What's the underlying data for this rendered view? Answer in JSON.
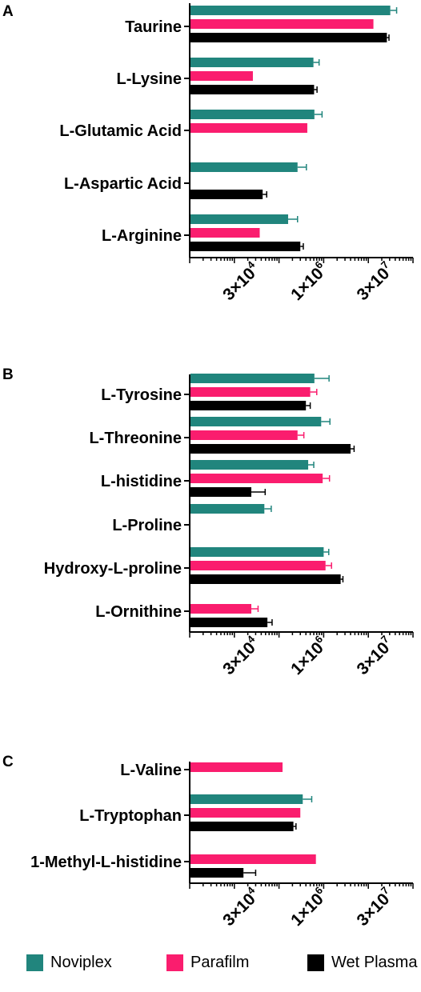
{
  "colors": {
    "Noviplex": "#21857d",
    "Parafilm": "#fa1d6e",
    "Wet Plasma": "#000000"
  },
  "legend": [
    "Noviplex",
    "Parafilm",
    "Wet Plasma"
  ],
  "chart_data": [
    {
      "panel": "A",
      "type": "bar",
      "orientation": "horizontal",
      "xscale": "log",
      "xlim": [
        1000,
        100000000
      ],
      "xticks": [
        "3×10^4",
        "1×10^6",
        "3×10^7"
      ],
      "categories": [
        "Taurine",
        "L-Lysine",
        "L-Glutamic Acid",
        "L-Aspartic Acid",
        "L-Arginine"
      ],
      "series": [
        {
          "name": "Noviplex",
          "values": [
            31000000,
            590000,
            620000,
            260000,
            160000
          ],
          "errors": [
            12000000,
            200000,
            300000,
            150000,
            100000
          ]
        },
        {
          "name": "Parafilm",
          "values": [
            13000000,
            26000,
            430000,
            null,
            37000
          ],
          "errors": [
            null,
            null,
            null,
            null,
            null
          ]
        },
        {
          "name": "Wet Plasma",
          "values": [
            26000000,
            610000,
            null,
            43000,
            300000
          ],
          "errors": [
            3000000,
            100000,
            null,
            10000,
            50000
          ]
        }
      ]
    },
    {
      "panel": "B",
      "type": "bar",
      "orientation": "horizontal",
      "xscale": "log",
      "xlim": [
        1000,
        100000000
      ],
      "xticks": [
        "3×10^4",
        "1×10^6",
        "3×10^7"
      ],
      "categories": [
        "L-Tyrosine",
        "L-Threonine",
        "L-histidine",
        "L-Proline",
        "Hydroxy-L-proline",
        "L-Ornithine"
      ],
      "series": [
        {
          "name": "Noviplex",
          "values": [
            620000,
            880000,
            450000,
            47000,
            1000000,
            null
          ],
          "errors": [
            700000,
            500000,
            150000,
            20000,
            300000,
            null
          ]
        },
        {
          "name": "Parafilm",
          "values": [
            500000,
            260000,
            950000,
            null,
            1100000,
            24000
          ],
          "errors": [
            200000,
            100000,
            400000,
            null,
            400000,
            10000
          ]
        },
        {
          "name": "Wet Plasma",
          "values": [
            400000,
            4000000,
            24000,
            null,
            2400000,
            55000
          ],
          "errors": [
            100000,
            800000,
            25000,
            null,
            300000,
            15000
          ]
        }
      ]
    },
    {
      "panel": "C",
      "type": "bar",
      "orientation": "horizontal",
      "xscale": "log",
      "xlim": [
        1000,
        100000000
      ],
      "xticks": [
        "3×10^4",
        "1×10^6",
        "3×10^7"
      ],
      "categories": [
        "L-Valine",
        "L-Tryptophan",
        "1-Methyl-L-histidine"
      ],
      "series": [
        {
          "name": "Noviplex",
          "values": [
            null,
            340000,
            null
          ],
          "errors": [
            null,
            200000,
            null
          ]
        },
        {
          "name": "Parafilm",
          "values": [
            120000,
            300000,
            670000
          ],
          "errors": [
            null,
            null,
            null
          ]
        },
        {
          "name": "Wet Plasma",
          "values": [
            null,
            210000,
            16000
          ],
          "errors": [
            null,
            30000,
            14000
          ]
        }
      ]
    }
  ]
}
